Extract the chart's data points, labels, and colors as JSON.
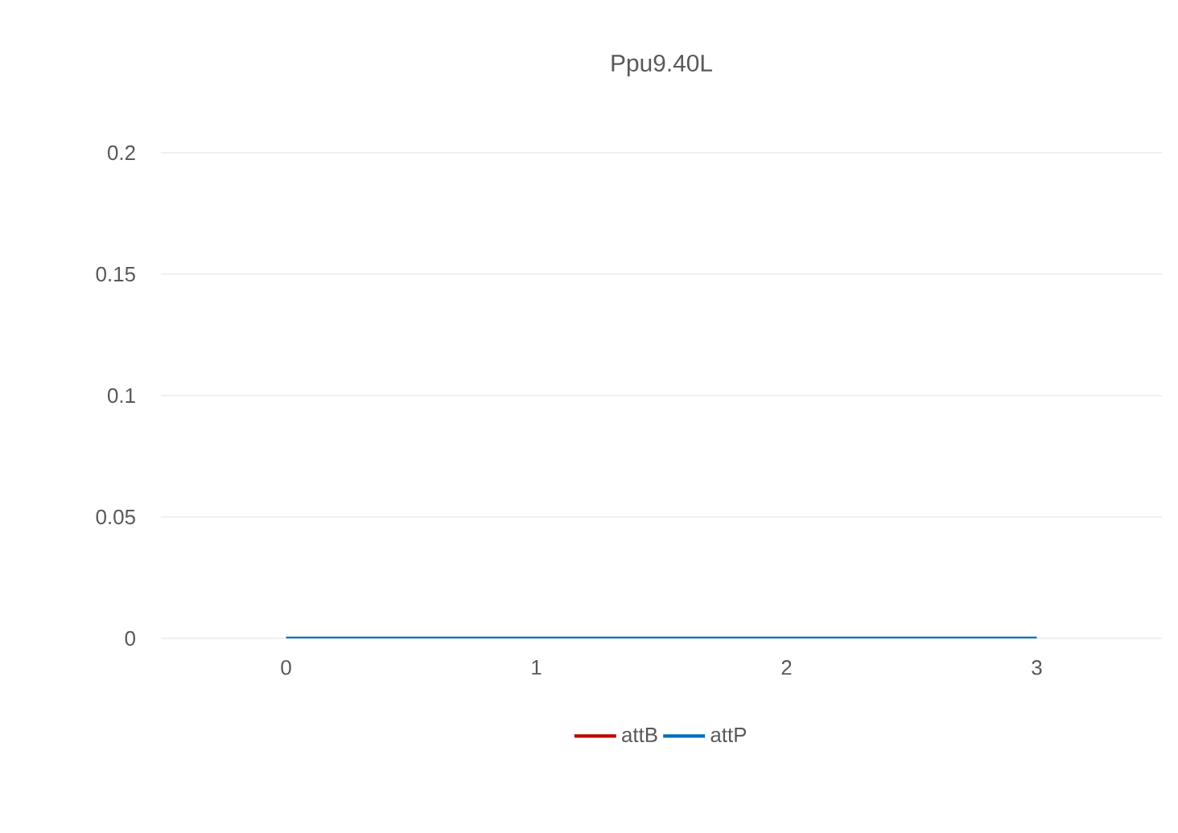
{
  "chart_data": {
    "type": "line",
    "title": "Ppu9.40L",
    "categories": [
      "0",
      "1",
      "2",
      "3"
    ],
    "series": [
      {
        "name": "attB",
        "color": "#c00000",
        "values": [
          null,
          null,
          null,
          null
        ]
      },
      {
        "name": "attP",
        "color": "#0070c0",
        "values": [
          0,
          0,
          0,
          0
        ]
      }
    ],
    "ylim": [
      0,
      0.2
    ],
    "yticks": [
      0,
      0.05,
      0.1,
      0.15,
      0.2
    ],
    "grid": "y",
    "legend": "bottom",
    "line_style": "solid"
  }
}
